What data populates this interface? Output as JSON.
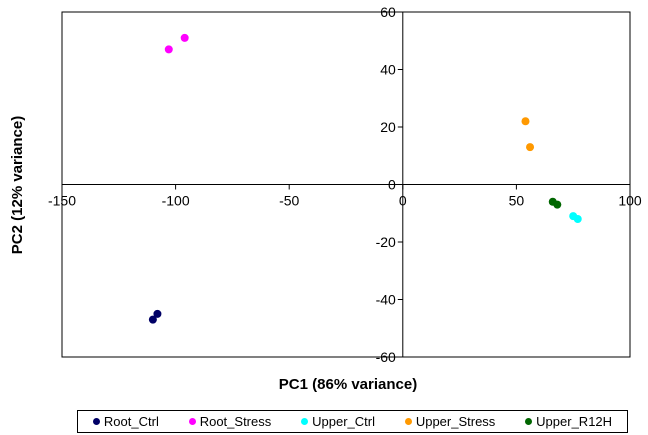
{
  "chart_data": {
    "type": "scatter",
    "title": "",
    "xlabel": "PC1 (86% variance)",
    "ylabel": "PC2 (12% variance)",
    "xlim": [
      -150,
      100
    ],
    "ylim": [
      -60,
      60
    ],
    "x_ticks": [
      -150,
      -100,
      -50,
      0,
      50,
      100
    ],
    "y_ticks": [
      -60,
      -40,
      -20,
      0,
      20,
      40,
      60
    ],
    "grid": false,
    "legend_position": "bottom",
    "series": [
      {
        "name": "Root_Ctrl",
        "color": "#000066",
        "points": [
          [
            -110,
            -47
          ],
          [
            -108,
            -45
          ]
        ]
      },
      {
        "name": "Root_Stress",
        "color": "#ff00ff",
        "points": [
          [
            -103,
            47
          ],
          [
            -96,
            51
          ]
        ]
      },
      {
        "name": "Upper_Ctrl",
        "color": "#00ffff",
        "points": [
          [
            75,
            -11
          ],
          [
            77,
            -12
          ]
        ]
      },
      {
        "name": "Upper_Stress",
        "color": "#ff9900",
        "points": [
          [
            54,
            22
          ],
          [
            56,
            13
          ]
        ]
      },
      {
        "name": "Upper_R12H",
        "color": "#006600",
        "points": [
          [
            66,
            -6
          ],
          [
            68,
            -7
          ]
        ]
      }
    ]
  }
}
